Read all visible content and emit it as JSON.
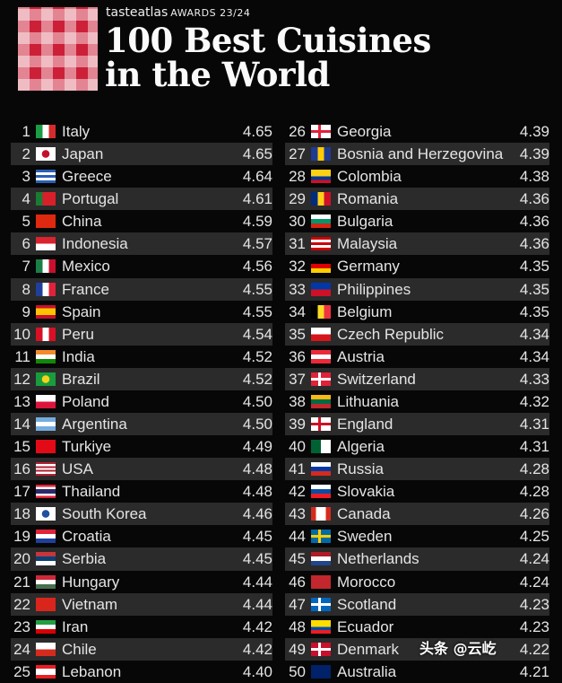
{
  "header": {
    "brand": "tasteatlas",
    "awards": "AWARDS 23/24",
    "title_line1": "100 Best Cuisines",
    "title_line2": "in the World"
  },
  "left": [
    {
      "rank": "1",
      "name": "Italy",
      "score": "4.65",
      "flag": {
        "dir": "v",
        "colors": [
          "#1a9c45",
          "#ffffff",
          "#d52b2b"
        ]
      }
    },
    {
      "rank": "2",
      "name": "Japan",
      "score": "4.65",
      "flag": {
        "dir": "dot",
        "colors": [
          "#ffffff",
          "#c4102b"
        ]
      }
    },
    {
      "rank": "3",
      "name": "Greece",
      "score": "4.64",
      "flag": {
        "dir": "h",
        "colors": [
          "#2a5fb5",
          "#ffffff",
          "#2a5fb5",
          "#ffffff",
          "#2a5fb5"
        ]
      }
    },
    {
      "rank": "4",
      "name": "Portugal",
      "score": "4.61",
      "flag": {
        "dir": "v",
        "colors": [
          "#1b7a34",
          "#d8202a",
          "#d8202a"
        ]
      }
    },
    {
      "rank": "5",
      "name": "China",
      "score": "4.59",
      "flag": {
        "dir": "h",
        "colors": [
          "#de2910"
        ]
      }
    },
    {
      "rank": "6",
      "name": "Indonesia",
      "score": "4.57",
      "flag": {
        "dir": "h",
        "colors": [
          "#d9232e",
          "#ffffff"
        ]
      }
    },
    {
      "rank": "7",
      "name": "Mexico",
      "score": "4.56",
      "flag": {
        "dir": "v",
        "colors": [
          "#1a7f47",
          "#ffffff",
          "#c8102e"
        ]
      }
    },
    {
      "rank": "8",
      "name": "France",
      "score": "4.55",
      "flag": {
        "dir": "v",
        "colors": [
          "#1f3f9c",
          "#ffffff",
          "#e0223a"
        ]
      }
    },
    {
      "rank": "9",
      "name": "Spain",
      "score": "4.55",
      "flag": {
        "dir": "h",
        "colors": [
          "#c8102e",
          "#ffc400",
          "#ffc400",
          "#c8102e"
        ]
      }
    },
    {
      "rank": "10",
      "name": "Peru",
      "score": "4.54",
      "flag": {
        "dir": "v",
        "colors": [
          "#d91023",
          "#ffffff",
          "#d91023"
        ]
      }
    },
    {
      "rank": "11",
      "name": "India",
      "score": "4.52",
      "flag": {
        "dir": "h",
        "colors": [
          "#f28c28",
          "#ffffff",
          "#138808"
        ]
      }
    },
    {
      "rank": "12",
      "name": "Brazil",
      "score": "4.52",
      "flag": {
        "dir": "dot",
        "colors": [
          "#1a9c3c",
          "#f5d31c"
        ]
      }
    },
    {
      "rank": "13",
      "name": "Poland",
      "score": "4.50",
      "flag": {
        "dir": "h",
        "colors": [
          "#ffffff",
          "#dc143c"
        ]
      }
    },
    {
      "rank": "14",
      "name": "Argentina",
      "score": "4.50",
      "flag": {
        "dir": "h",
        "colors": [
          "#74acdf",
          "#ffffff",
          "#74acdf"
        ]
      }
    },
    {
      "rank": "15",
      "name": "Turkiye",
      "score": "4.49",
      "flag": {
        "dir": "h",
        "colors": [
          "#e30a17"
        ]
      }
    },
    {
      "rank": "16",
      "name": "USA",
      "score": "4.48",
      "flag": {
        "dir": "h",
        "colors": [
          "#b22234",
          "#ffffff",
          "#b22234",
          "#ffffff",
          "#b22234",
          "#ffffff",
          "#b22234"
        ]
      }
    },
    {
      "rank": "17",
      "name": "Thailand",
      "score": "4.48",
      "flag": {
        "dir": "h",
        "colors": [
          "#e0223a",
          "#ffffff",
          "#2d2a6a",
          "#2d2a6a",
          "#ffffff",
          "#e0223a"
        ]
      }
    },
    {
      "rank": "18",
      "name": "South Korea",
      "score": "4.46",
      "flag": {
        "dir": "dot",
        "colors": [
          "#ffffff",
          "#2050a0"
        ]
      }
    },
    {
      "rank": "19",
      "name": "Croatia",
      "score": "4.45",
      "flag": {
        "dir": "h",
        "colors": [
          "#e0223a",
          "#ffffff",
          "#1f3f9c"
        ]
      }
    },
    {
      "rank": "20",
      "name": "Serbia",
      "score": "4.45",
      "flag": {
        "dir": "h",
        "colors": [
          "#c6363c",
          "#0c4076",
          "#ffffff"
        ]
      }
    },
    {
      "rank": "21",
      "name": "Hungary",
      "score": "4.44",
      "flag": {
        "dir": "h",
        "colors": [
          "#ce2939",
          "#ffffff",
          "#477050"
        ]
      }
    },
    {
      "rank": "22",
      "name": "Vietnam",
      "score": "4.44",
      "flag": {
        "dir": "h",
        "colors": [
          "#da251d"
        ]
      }
    },
    {
      "rank": "23",
      "name": "Iran",
      "score": "4.42",
      "flag": {
        "dir": "h",
        "colors": [
          "#239f40",
          "#ffffff",
          "#da0000"
        ]
      }
    },
    {
      "rank": "24",
      "name": "Chile",
      "score": "4.42",
      "flag": {
        "dir": "h",
        "colors": [
          "#ffffff",
          "#d52b1e"
        ]
      }
    },
    {
      "rank": "25",
      "name": "Lebanon",
      "score": "4.40",
      "flag": {
        "dir": "h",
        "colors": [
          "#ed1c24",
          "#ffffff",
          "#ffffff",
          "#ed1c24"
        ]
      }
    }
  ],
  "right": [
    {
      "rank": "26",
      "name": "Georgia",
      "score": "4.39",
      "flag": {
        "dir": "cross",
        "colors": [
          "#ffffff",
          "#e0223a"
        ]
      }
    },
    {
      "rank": "27",
      "name": "Bosnia and Herzegovina",
      "score": "4.39",
      "flag": {
        "dir": "v",
        "colors": [
          "#1f3a93",
          "#fecb00",
          "#1f3a93"
        ]
      }
    },
    {
      "rank": "28",
      "name": "Colombia",
      "score": "4.38",
      "flag": {
        "dir": "h",
        "colors": [
          "#fcd116",
          "#fcd116",
          "#003893",
          "#ce1126"
        ]
      }
    },
    {
      "rank": "29",
      "name": "Romania",
      "score": "4.36",
      "flag": {
        "dir": "v",
        "colors": [
          "#002b7f",
          "#fcd116",
          "#ce1126"
        ]
      }
    },
    {
      "rank": "30",
      "name": "Bulgaria",
      "score": "4.36",
      "flag": {
        "dir": "h",
        "colors": [
          "#ffffff",
          "#00966e",
          "#d62612"
        ]
      }
    },
    {
      "rank": "31",
      "name": "Malaysia",
      "score": "4.36",
      "flag": {
        "dir": "h",
        "colors": [
          "#cc0001",
          "#ffffff",
          "#cc0001",
          "#ffffff",
          "#cc0001"
        ]
      }
    },
    {
      "rank": "32",
      "name": "Germany",
      "score": "4.35",
      "flag": {
        "dir": "h",
        "colors": [
          "#000000",
          "#dd0000",
          "#ffce00"
        ]
      }
    },
    {
      "rank": "33",
      "name": "Philippines",
      "score": "4.35",
      "flag": {
        "dir": "h",
        "colors": [
          "#0038a8",
          "#ce1126"
        ]
      }
    },
    {
      "rank": "34",
      "name": "Belgium",
      "score": "4.35",
      "flag": {
        "dir": "v",
        "colors": [
          "#000000",
          "#fdda24",
          "#ef3340"
        ]
      }
    },
    {
      "rank": "35",
      "name": "Czech Republic",
      "score": "4.34",
      "flag": {
        "dir": "h",
        "colors": [
          "#ffffff",
          "#d7141a"
        ]
      }
    },
    {
      "rank": "36",
      "name": "Austria",
      "score": "4.34",
      "flag": {
        "dir": "h",
        "colors": [
          "#ed2939",
          "#ffffff",
          "#ed2939"
        ]
      }
    },
    {
      "rank": "37",
      "name": "Switzerland",
      "score": "4.33",
      "flag": {
        "dir": "cross",
        "colors": [
          "#e0223a",
          "#ffffff"
        ]
      }
    },
    {
      "rank": "38",
      "name": "Lithuania",
      "score": "4.32",
      "flag": {
        "dir": "h",
        "colors": [
          "#fdb913",
          "#006a44",
          "#c1272d"
        ]
      }
    },
    {
      "rank": "39",
      "name": "England",
      "score": "4.31",
      "flag": {
        "dir": "cross",
        "colors": [
          "#ffffff",
          "#ce1124"
        ]
      }
    },
    {
      "rank": "40",
      "name": "Algeria",
      "score": "4.31",
      "flag": {
        "dir": "v",
        "colors": [
          "#006233",
          "#ffffff"
        ]
      }
    },
    {
      "rank": "41",
      "name": "Russia",
      "score": "4.28",
      "flag": {
        "dir": "h",
        "colors": [
          "#ffffff",
          "#0039a6",
          "#d52b1e"
        ]
      }
    },
    {
      "rank": "42",
      "name": "Slovakia",
      "score": "4.28",
      "flag": {
        "dir": "h",
        "colors": [
          "#ffffff",
          "#0b4ea2",
          "#ee1c25"
        ]
      }
    },
    {
      "rank": "43",
      "name": "Canada",
      "score": "4.26",
      "flag": {
        "dir": "v",
        "colors": [
          "#d52b1e",
          "#ffffff",
          "#ffffff",
          "#d52b1e"
        ]
      }
    },
    {
      "rank": "44",
      "name": "Sweden",
      "score": "4.25",
      "flag": {
        "dir": "cross",
        "colors": [
          "#006aa7",
          "#fecc00"
        ]
      }
    },
    {
      "rank": "45",
      "name": "Netherlands",
      "score": "4.24",
      "flag": {
        "dir": "h",
        "colors": [
          "#ae1c28",
          "#ffffff",
          "#21468b"
        ]
      }
    },
    {
      "rank": "46",
      "name": "Morocco",
      "score": "4.24",
      "flag": {
        "dir": "h",
        "colors": [
          "#c1272d"
        ]
      }
    },
    {
      "rank": "47",
      "name": "Scotland",
      "score": "4.23",
      "flag": {
        "dir": "cross",
        "colors": [
          "#0065bd",
          "#ffffff"
        ]
      }
    },
    {
      "rank": "48",
      "name": "Ecuador",
      "score": "4.23",
      "flag": {
        "dir": "h",
        "colors": [
          "#ffdd00",
          "#ffdd00",
          "#034ea2",
          "#ed1c24"
        ]
      }
    },
    {
      "rank": "49",
      "name": "Denmark",
      "score": "4.22",
      "flag": {
        "dir": "cross",
        "colors": [
          "#c8102e",
          "#ffffff"
        ]
      }
    },
    {
      "rank": "50",
      "name": "Australia",
      "score": "4.21",
      "flag": {
        "dir": "h",
        "colors": [
          "#012169"
        ]
      }
    }
  ],
  "watermark": "头条 @云屹"
}
